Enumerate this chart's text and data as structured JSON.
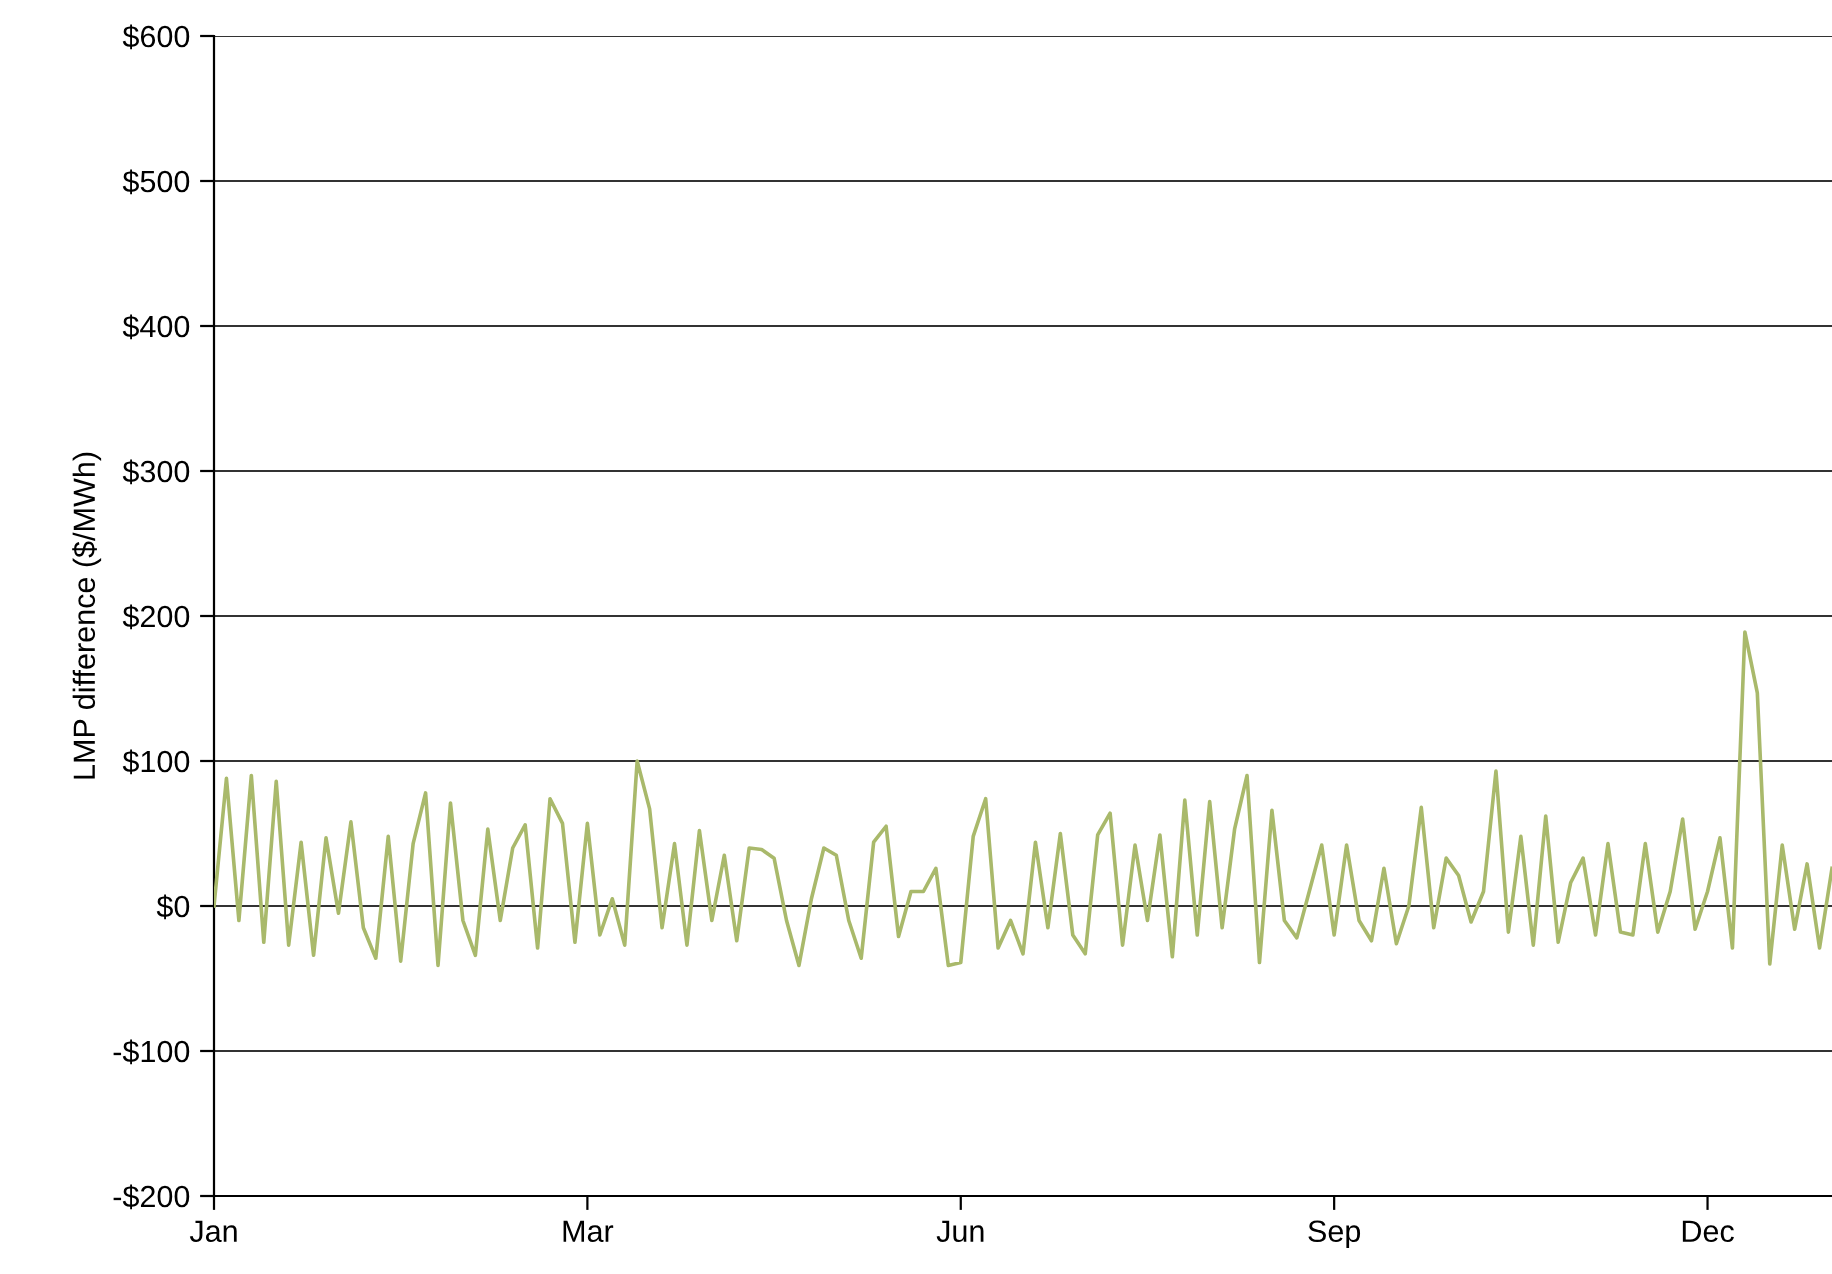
{
  "chart_data": {
    "type": "line",
    "ylabel": "LMP difference ($/MWh)",
    "categories": [
      "Jan",
      null,
      null,
      null,
      null,
      null,
      null,
      null,
      null,
      null,
      null,
      null,
      null,
      null,
      null,
      null,
      null,
      null,
      null,
      null,
      null,
      null,
      null,
      null,
      null,
      null,
      null,
      null,
      null,
      null,
      "Mar",
      null,
      null,
      null,
      null,
      null,
      null,
      null,
      null,
      null,
      null,
      null,
      null,
      null,
      null,
      null,
      null,
      null,
      null,
      null,
      null,
      null,
      null,
      null,
      null,
      null,
      null,
      null,
      null,
      null,
      "Jun",
      null,
      null,
      null,
      null,
      null,
      null,
      null,
      null,
      null,
      null,
      null,
      null,
      null,
      null,
      null,
      null,
      null,
      null,
      null,
      null,
      null,
      null,
      null,
      null,
      null,
      null,
      null,
      null,
      null,
      "Sep",
      null,
      null,
      null,
      null,
      null,
      null,
      null,
      null,
      null,
      null,
      null,
      null,
      null,
      null,
      null,
      null,
      null,
      null,
      null,
      null,
      null,
      null,
      null,
      null,
      null,
      null,
      null,
      null,
      null,
      "Dec",
      null,
      null,
      null,
      null,
      null,
      null,
      null,
      null,
      null,
      null
    ],
    "ylim": [
      -200,
      600
    ],
    "yticks": [
      {
        "value": -200,
        "label": "-$200"
      },
      {
        "value": -100,
        "label": "-$100"
      },
      {
        "value": 0,
        "label": "$0"
      },
      {
        "value": 100,
        "label": "$100"
      },
      {
        "value": 200,
        "label": "$200"
      },
      {
        "value": 300,
        "label": "$300"
      },
      {
        "value": 400,
        "label": "$400"
      },
      {
        "value": 500,
        "label": "$500"
      },
      {
        "value": 600,
        "label": "$600"
      }
    ],
    "grid": "y",
    "marker": "none",
    "line_style": "solid",
    "series": [
      {
        "color": "#a9b96b",
        "values": [
          0,
          88,
          -10,
          90,
          -25,
          86,
          -27,
          44,
          -34,
          47,
          -5,
          58,
          -15,
          -36,
          48,
          -38,
          43,
          78,
          -41,
          71,
          -10,
          -34,
          53,
          -10,
          40,
          56,
          -29,
          74,
          57,
          -25,
          57,
          -20,
          5,
          -27,
          100,
          67,
          -15,
          43,
          -27,
          52,
          -10,
          35,
          -24,
          40,
          39,
          33,
          -10,
          -41,
          5,
          40,
          35,
          -10,
          -36,
          44,
          55,
          -21,
          10,
          10,
          26,
          -41,
          -39,
          48,
          74,
          -29,
          -10,
          -33,
          44,
          -15,
          50,
          -20,
          -33,
          49,
          64,
          -27,
          42,
          -10,
          49,
          -35,
          73,
          -20,
          72,
          -15,
          53,
          90,
          -39,
          66,
          -10,
          -22,
          10,
          42,
          -20,
          42,
          -10,
          -24,
          26,
          -26,
          0,
          68,
          -15,
          33,
          21,
          -11,
          10,
          93,
          -18,
          48,
          -27,
          62,
          -25,
          16,
          33,
          -20,
          43,
          -18,
          -20,
          43,
          -18,
          10,
          60,
          -16,
          10,
          47,
          -29,
          189,
          147,
          -40,
          42,
          -16,
          29,
          -29,
          26
        ]
      }
    ]
  }
}
